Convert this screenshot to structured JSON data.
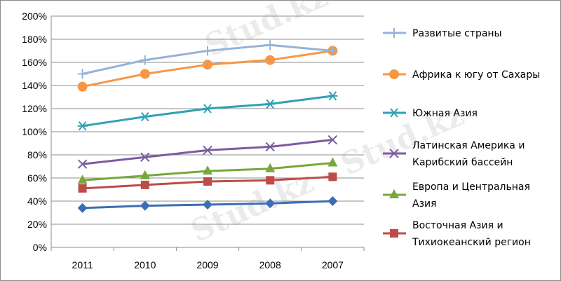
{
  "chart_data": {
    "type": "line",
    "categories": [
      "2011",
      "2010",
      "2009",
      "2008",
      "2007"
    ],
    "ylim": [
      0,
      200
    ],
    "y_ticks": [
      "0%",
      "20%",
      "40%",
      "60%",
      "80%",
      "100%",
      "120%",
      "140%",
      "160%",
      "180%",
      "200%"
    ],
    "grid": true,
    "legend_position": "right",
    "watermark_text": "Stud.kz - Stud.kz",
    "series": [
      {
        "name": "Развитые страны",
        "name_lines": [
          "Развитые страны"
        ],
        "values": [
          150,
          162,
          170,
          175,
          170
        ],
        "color": "#95b3d7",
        "marker": "plus"
      },
      {
        "name": "Африка к югу от Сахары",
        "name_lines": [
          "Африка к югу от Сахары"
        ],
        "values": [
          139,
          150,
          158,
          162,
          170
        ],
        "color": "#f79646",
        "marker": "circle"
      },
      {
        "name": "Южная Азия",
        "name_lines": [
          "Южная Азия"
        ],
        "values": [
          105,
          113,
          120,
          124,
          131
        ],
        "color": "#31a0b4",
        "marker": "star"
      },
      {
        "name": "Латинская Америка и Карибский бассейн",
        "name_lines": [
          "Латинская Америка и",
          "Карибский бассейн"
        ],
        "values": [
          72,
          78,
          84,
          87,
          93
        ],
        "color": "#7f5aa0",
        "marker": "x"
      },
      {
        "name": "Европа и Центральная Азия",
        "name_lines": [
          "Европа и Центральная",
          "Азия"
        ],
        "values": [
          58,
          62,
          66,
          68,
          73
        ],
        "color": "#77a83a",
        "marker": "triangle"
      },
      {
        "name": "Восточная Азия и Тихиокеанский регион",
        "name_lines": [
          "Восточная Азия и",
          "Тихиокеанский регион"
        ],
        "values": [
          51,
          54,
          57,
          58,
          61
        ],
        "color": "#be4b48",
        "marker": "square"
      },
      {
        "name": "",
        "name_lines": [],
        "values": [
          34,
          36,
          37,
          38,
          40
        ],
        "color": "#3c6eb4",
        "marker": "diamond"
      }
    ]
  }
}
